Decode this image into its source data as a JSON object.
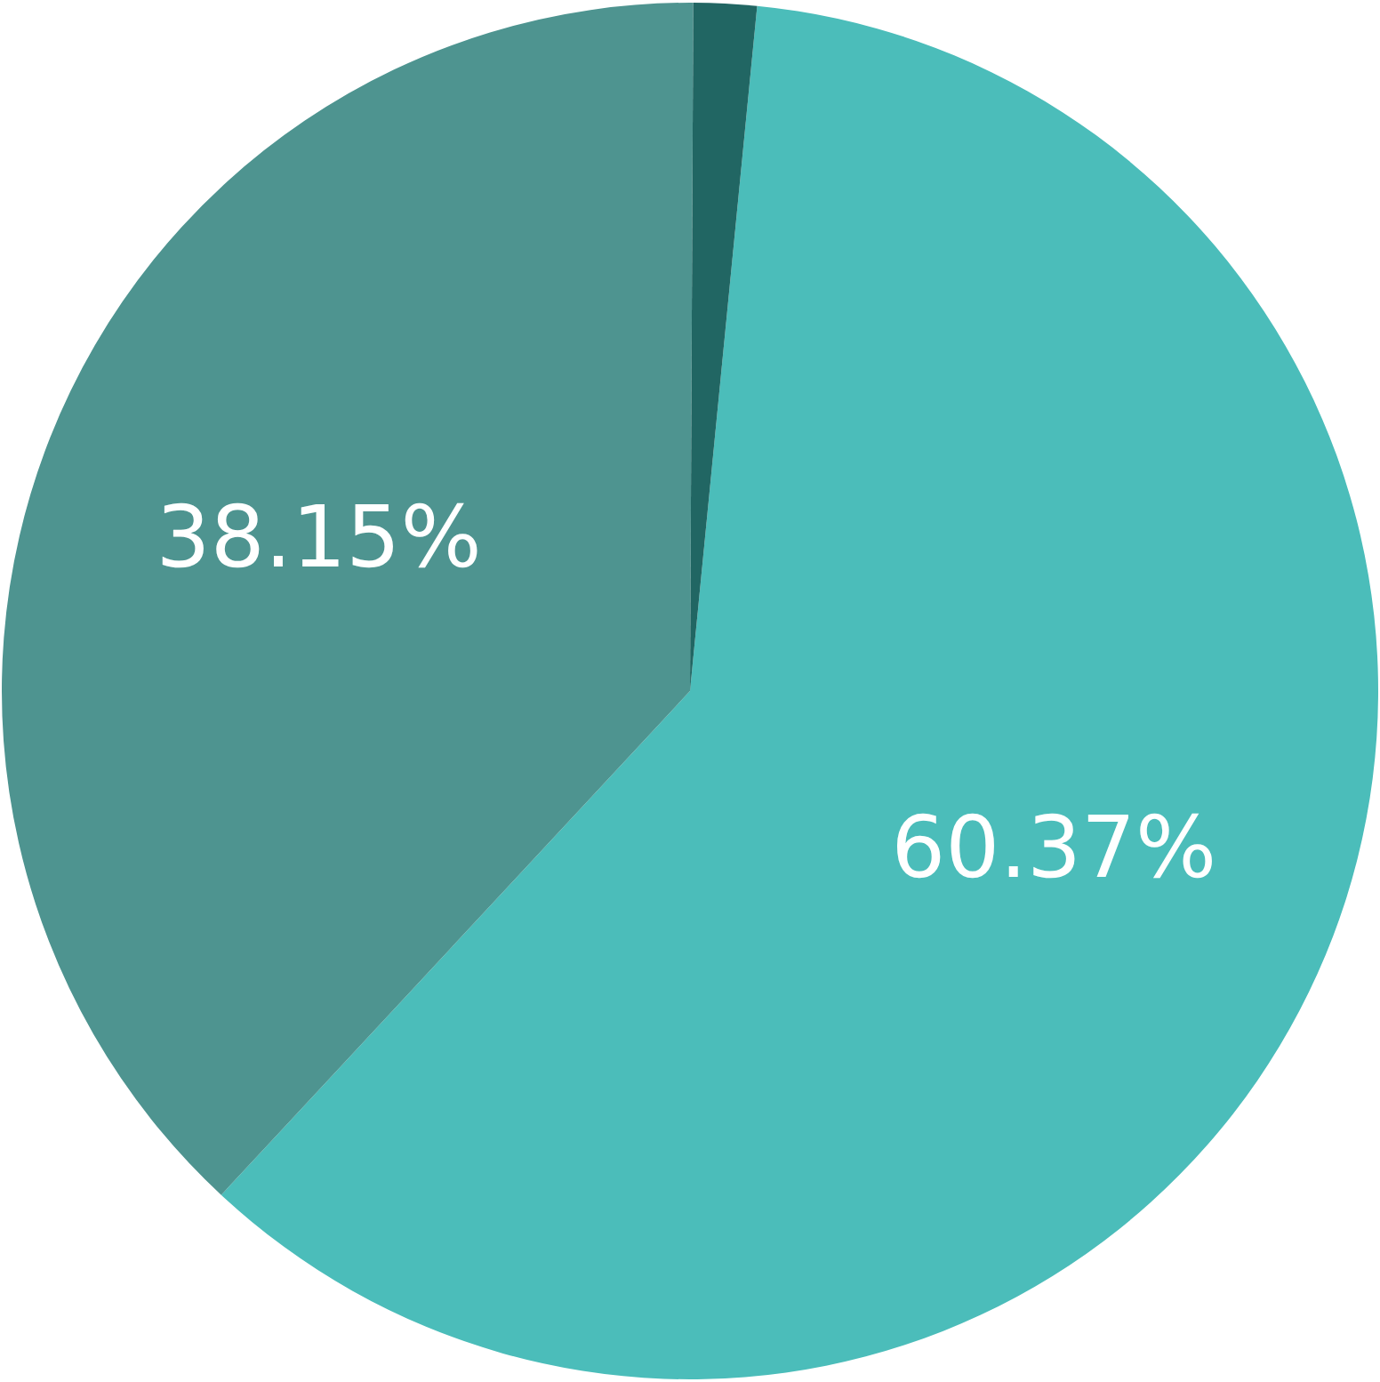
{
  "chart_data": {
    "type": "pie",
    "categories": [
      null,
      null,
      null
    ],
    "values": [
      60.37,
      38.15,
      1.48
    ],
    "colors": [
      "#4bbdba",
      "#4e9490",
      "#216663"
    ],
    "value_labels": [
      "60.37%",
      "38.15%",
      null
    ]
  }
}
